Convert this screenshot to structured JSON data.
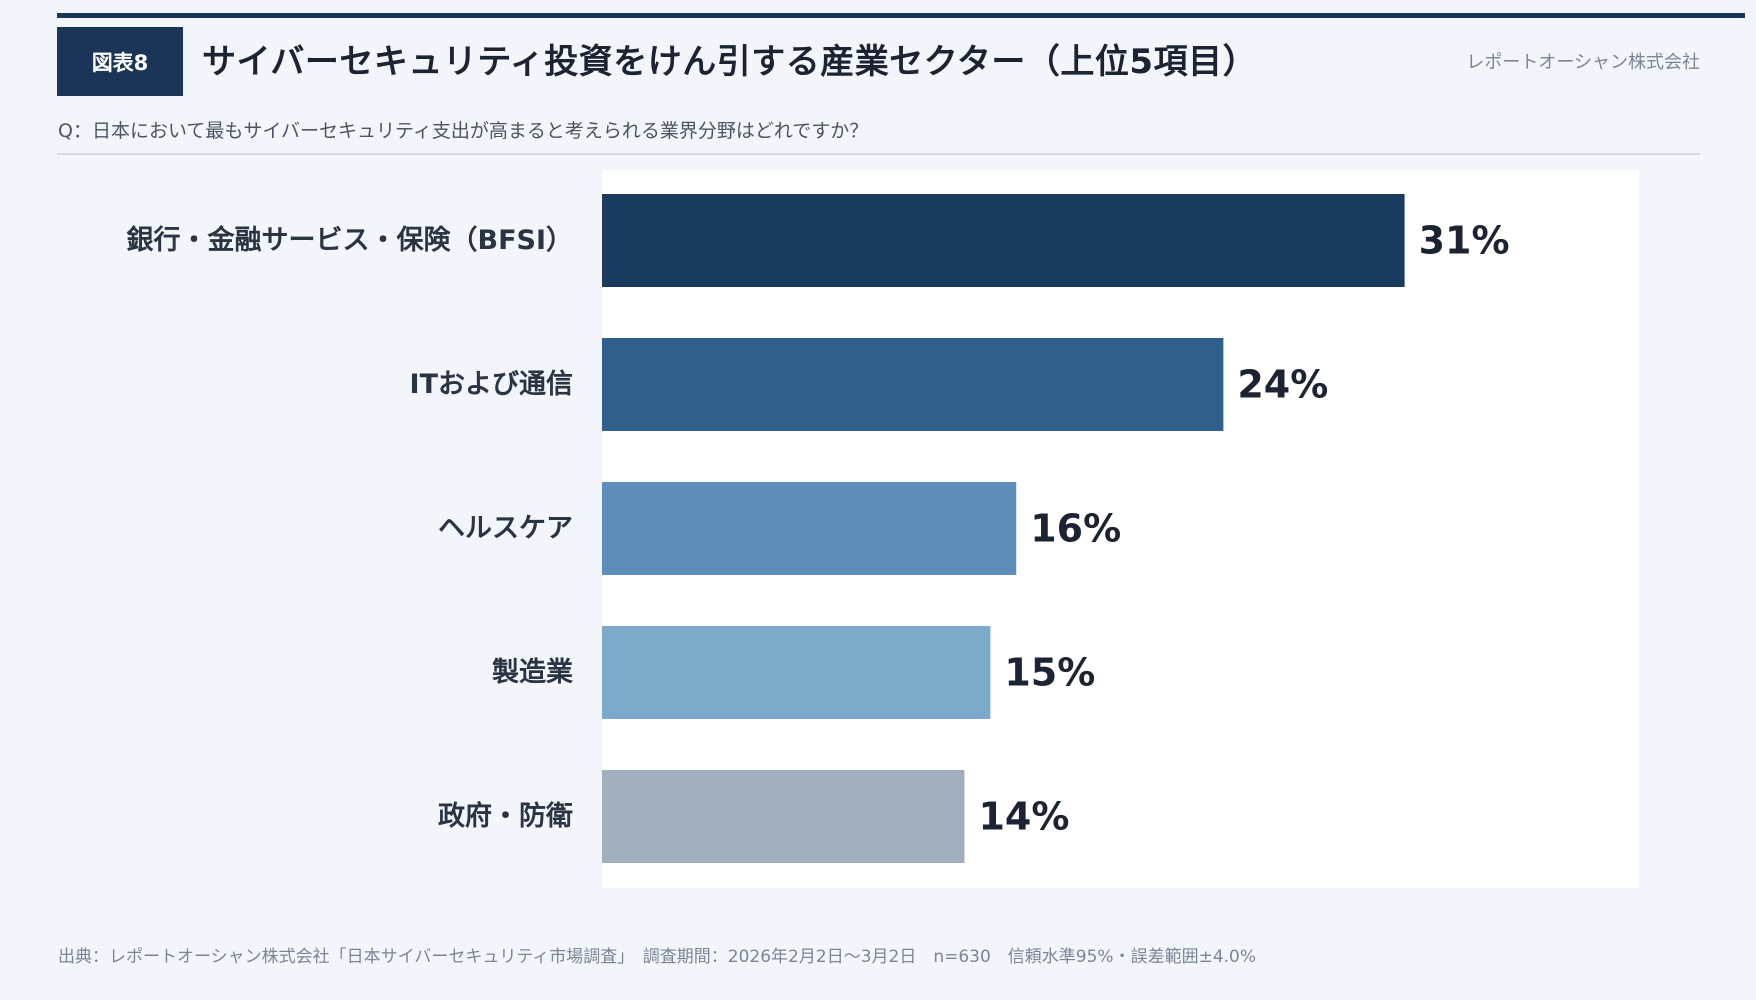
{
  "header": {
    "figure_label": "図表8",
    "title": "サイバーセキュリティ投資をけん引する産業セクター（上位5項目）",
    "company": "レポートオーシャン株式会社"
  },
  "question": "Q：日本において最もサイバーセキュリティ支出が高まると考えられる業界分野はどれですか？",
  "chart_data": {
    "type": "bar",
    "orientation": "horizontal",
    "categories": [
      "銀行・金融サービス・保険（BFSI）",
      "ITおよび通信",
      "ヘルスケア",
      "製造業",
      "政府・防衛"
    ],
    "values": [
      31,
      24,
      16,
      15,
      14
    ],
    "value_labels": [
      "31%",
      "24%",
      "16%",
      "15%",
      "14%"
    ],
    "unit": "%",
    "xlim": [
      0,
      40
    ],
    "colors": [
      "#1a3a5e",
      "#2f5f8a",
      "#5d8db8",
      "#7da9ca",
      "#a2afbf"
    ],
    "title": "サイバーセキュリティ投資をけん引する産業セクター（上位5項目）",
    "xlabel": "",
    "ylabel": ""
  },
  "footer": {
    "note": "出典：レポートオーシャン株式会社「日本サイバーセキュリティ市場調査」　調査期間：2026年2月2日〜3月2日　n=630　信頼水準95%・誤差範囲±4.0%"
  }
}
